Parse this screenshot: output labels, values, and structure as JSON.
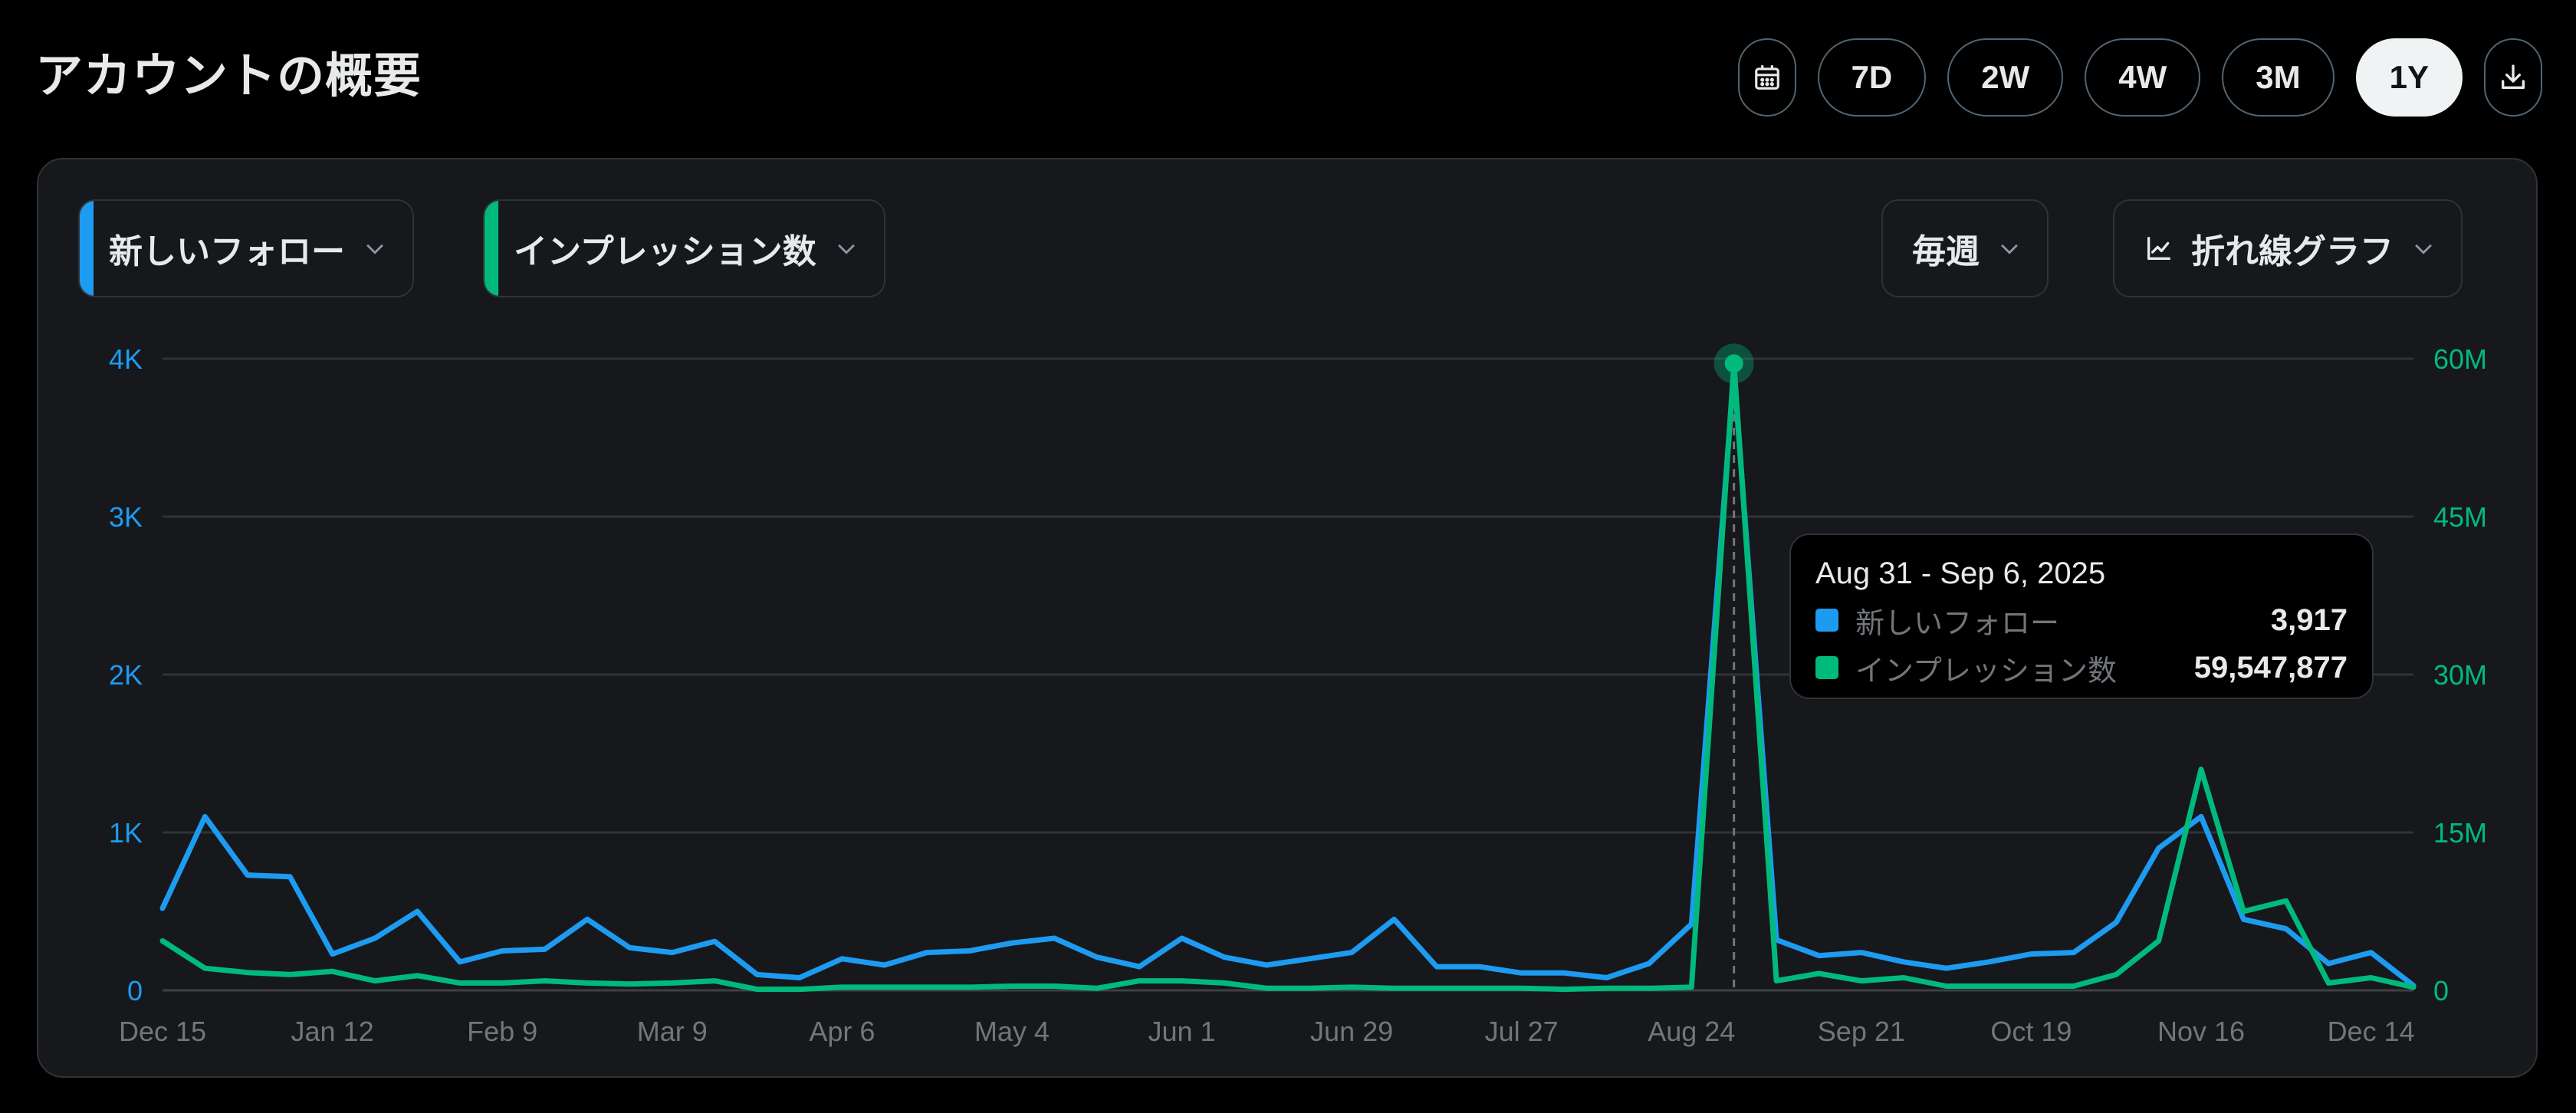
{
  "page": {
    "title": "アカウントの概要"
  },
  "range_buttons": [
    {
      "label": "7D",
      "active": false
    },
    {
      "label": "2W",
      "active": false
    },
    {
      "label": "4W",
      "active": false
    },
    {
      "label": "3M",
      "active": false
    },
    {
      "label": "1Y",
      "active": true
    }
  ],
  "icons": {
    "calendar": "calendar-icon",
    "download": "download-icon",
    "chevron": "chevron-down-icon",
    "line_chart": "line-chart-icon"
  },
  "controls": {
    "metric1": "新しいフォロー",
    "metric2": "インプレッション数",
    "interval": "毎週",
    "chart_type": "折れ線グラフ"
  },
  "colors": {
    "follows": "#1d9bf0",
    "impressions": "#00ba7c",
    "background": "#16181c",
    "grid": "#2f3336"
  },
  "tooltip": {
    "date": "Aug 31 - Sep 6, 2025",
    "rows": [
      {
        "name": "新しいフォロー",
        "value": "3,917",
        "color": "#1d9bf0"
      },
      {
        "name": "インプレッション数",
        "value": "59,547,877",
        "color": "#00ba7c"
      }
    ]
  },
  "chart_data": {
    "type": "line",
    "x_ticks": [
      "Dec 15",
      "Jan 12",
      "Feb 9",
      "Mar 9",
      "Apr 6",
      "May 4",
      "Jun 1",
      "Jun 29",
      "Jul 27",
      "Aug 24",
      "Sep 21",
      "Oct 19",
      "Nov 16",
      "Dec 14"
    ],
    "y_left": {
      "ticks": [
        "0",
        "1K",
        "2K",
        "3K",
        "4K"
      ],
      "ylim": [
        0,
        4000
      ]
    },
    "y_right": {
      "ticks": [
        "0",
        "15M",
        "30M",
        "45M",
        "60M"
      ],
      "ylim": [
        0,
        60000000
      ]
    },
    "grid": true,
    "highlight_index": 37,
    "series": [
      {
        "name": "新しいフォロー",
        "axis": "left",
        "color": "#1d9bf0",
        "values": [
          520,
          1100,
          730,
          720,
          230,
          330,
          500,
          180,
          250,
          260,
          450,
          270,
          240,
          310,
          100,
          80,
          200,
          160,
          240,
          250,
          300,
          330,
          210,
          150,
          330,
          210,
          160,
          200,
          240,
          450,
          150,
          150,
          110,
          110,
          80,
          170,
          420,
          3917,
          320,
          220,
          240,
          180,
          140,
          180,
          230,
          240,
          430,
          900,
          1100,
          450,
          390,
          170,
          240,
          30
        ]
      },
      {
        "name": "インプレッション数",
        "axis": "right",
        "color": "#00ba7c",
        "values": [
          4700000,
          2100000,
          1700000,
          1500000,
          1800000,
          900000,
          1400000,
          700000,
          700000,
          900000,
          700000,
          600000,
          700000,
          900000,
          100000,
          100000,
          300000,
          300000,
          300000,
          300000,
          400000,
          400000,
          200000,
          900000,
          900000,
          700000,
          200000,
          200000,
          300000,
          200000,
          200000,
          200000,
          200000,
          100000,
          200000,
          200000,
          300000,
          59547877,
          900000,
          1600000,
          900000,
          1200000,
          400000,
          400000,
          400000,
          400000,
          1500000,
          4700000,
          21000000,
          7500000,
          8500000,
          700000,
          1200000,
          300000
        ]
      }
    ]
  }
}
